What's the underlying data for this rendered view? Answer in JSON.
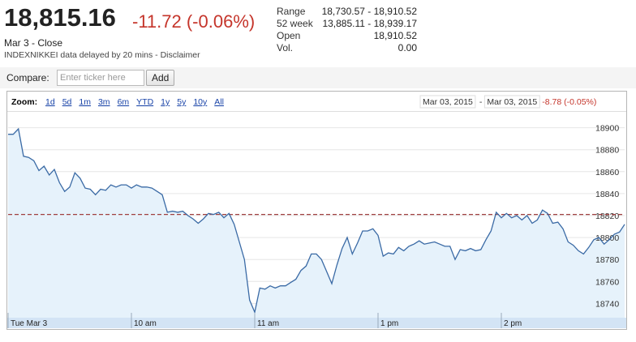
{
  "quote": {
    "price": "18,815.16",
    "change": "-11.72 (-0.06%)",
    "date": "Mar 3 - Close",
    "note": "INDEXNIKKEI data delayed by 20 mins - Disclaimer"
  },
  "stats": [
    {
      "label": "Range",
      "value": "18,730.57 - 18,910.52"
    },
    {
      "label": "52 week",
      "value": "13,885.11 - 18,939.17"
    },
    {
      "label": "Open",
      "value": "18,910.52"
    },
    {
      "label": "Vol.",
      "value": "0.00"
    }
  ],
  "compare": {
    "label": "Compare:",
    "placeholder": "Enter ticker here",
    "button": "Add"
  },
  "zoom": {
    "label": "Zoom:",
    "options": [
      "1d",
      "5d",
      "1m",
      "3m",
      "6m",
      "YTD",
      "1y",
      "5y",
      "10y",
      "All"
    ]
  },
  "range": {
    "from": "Mar 03, 2015",
    "separator": "-",
    "to": "Mar 03, 2015",
    "change": "-8.78 (-0.05%)"
  },
  "chart_data": {
    "type": "line",
    "color": "#3a6aa5",
    "fill": "#e6f2fb",
    "grid": true,
    "reference_line": 18821,
    "reference_color": "#a04040",
    "xlim": [
      0,
      300
    ],
    "ylim": [
      18727,
      18913
    ],
    "xticks": [
      {
        "value": 0,
        "label": "Tue Mar 3"
      },
      {
        "value": 60,
        "label": "10 am"
      },
      {
        "value": 120,
        "label": "11 am"
      },
      {
        "value": 180,
        "label": "1 pm"
      },
      {
        "value": 240,
        "label": "2 pm"
      }
    ],
    "yticks": [
      18740,
      18760,
      18780,
      18800,
      18820,
      18840,
      18860,
      18880,
      18900
    ],
    "x": [
      0,
      2.5,
      5,
      7.5,
      10,
      12.5,
      15,
      17.5,
      20,
      22.5,
      25,
      27.5,
      30,
      32.5,
      35,
      37.5,
      40,
      42.5,
      45,
      47.5,
      50,
      52.5,
      55,
      57.5,
      60,
      62.5,
      65,
      67.5,
      70,
      72.5,
      75,
      77.5,
      80,
      82.5,
      85,
      87.5,
      90,
      92.5,
      95,
      97.5,
      100,
      102.5,
      105,
      107.5,
      110,
      112.5,
      115,
      117.5,
      120,
      122.5,
      125,
      127.5,
      130,
      132.5,
      135,
      137.5,
      140,
      142.5,
      145,
      147.5,
      150,
      152.5,
      155,
      157.5,
      160,
      162.5,
      165,
      167.5,
      170,
      172.5,
      175,
      177.5,
      180,
      182.5,
      185,
      187.5,
      190,
      192.5,
      195,
      197.5,
      200,
      202.5,
      205,
      207.5,
      210,
      212.5,
      215,
      217.5,
      220,
      222.5,
      225,
      227.5,
      230,
      232.5,
      235,
      237.5,
      240,
      242.5,
      245,
      247.5,
      250,
      252.5,
      255,
      257.5,
      260,
      262.5,
      265,
      267.5,
      270,
      272.5,
      275,
      277.5,
      280,
      282.5,
      285,
      287.5,
      290,
      292.5,
      295,
      297.5,
      300
    ],
    "values": [
      18894,
      18894,
      18899,
      18874,
      18873,
      18870,
      18861,
      18865,
      18857,
      18862,
      18850,
      18842,
      18846,
      18859,
      18854,
      18845,
      18844,
      18839,
      18844,
      18843,
      18848,
      18846,
      18848,
      18848,
      18845,
      18848,
      18846,
      18846,
      18845,
      18842,
      18839,
      18823,
      18824,
      18823,
      18824,
      18820,
      18817,
      18813,
      18817,
      18822,
      18821,
      18823,
      18818,
      18822,
      18812,
      18796,
      18780,
      18743,
      18732,
      18754,
      18753,
      18756,
      18754,
      18756,
      18756,
      18759,
      18762,
      18770,
      18774,
      18785,
      18785,
      18780,
      18769,
      18758,
      18775,
      18790,
      18800,
      18785,
      18795,
      18806,
      18806,
      18808,
      18802,
      18783,
      18786,
      18785,
      18791,
      18788,
      18792,
      18794,
      18797,
      18794,
      18795,
      18796,
      18794,
      18792,
      18792,
      18780,
      18789,
      18788,
      18790,
      18788,
      18789,
      18798,
      18806,
      18823,
      18818,
      18822,
      18818,
      18820,
      18816,
      18820,
      18813,
      18816,
      18825,
      18822,
      18813,
      18814,
      18808,
      18796,
      18793,
      18788,
      18785,
      18791,
      18798,
      18800,
      18794,
      18798,
      18803,
      18805,
      18812
    ]
  }
}
